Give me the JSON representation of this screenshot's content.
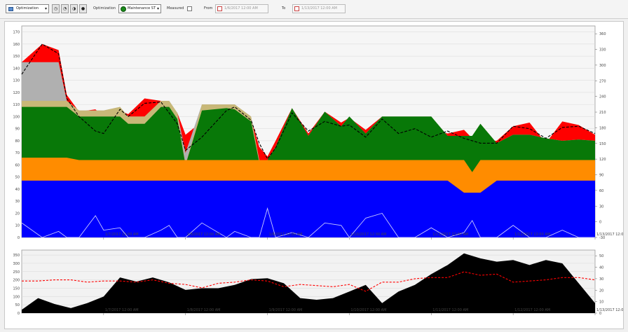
{
  "toolbar": {
    "view_dropdown": "Optimization",
    "optimization_label": "Optimization",
    "scenario_dropdown": "Maintenance ST",
    "measured_label": "Measured",
    "from_label": "From",
    "from_value": "1/6/2017 12:00 AM",
    "to_label": "To",
    "to_value": "1/13/2017 12:00 AM"
  },
  "colors": {
    "blue": "#0000ff",
    "orange": "#ff8c00",
    "green": "#087808",
    "khaki": "#c8b878",
    "gray": "#b0b0b0",
    "red": "#ff0000",
    "dashed": "#000000",
    "lightline": "#c8c8ff",
    "black_area": "#000000",
    "red_dashed": "#ff0000"
  },
  "chart_data": [
    {
      "type": "area",
      "x_tick_labels": [
        "1/7/2017 12:00 AM",
        "1/8/2017 12:00 AM",
        "1/9/2017 12:00 AM",
        "1/10/2017 12:00 AM",
        "1/11/2017 12:00 AM",
        "1/12/2017 12:00 AM",
        "1/13/2017 12:00 AM"
      ],
      "x_tick_texts": [
        "1/7/2017 12:00 AM",
        "1/8/2017 12:00 AM",
        "1/9/2017 12:00 AM",
        "1/10/2017 12:00 AM",
        "1/11/2017 12:00 AM",
        "1/12/2017 12:00 AM",
        "1/13/2017 12:00 AM"
      ],
      "xlim_days": [
        0,
        7
      ],
      "ylim_left": [
        0,
        175
      ],
      "y_ticks_left": [
        0,
        10,
        20,
        30,
        40,
        50,
        60,
        70,
        80,
        90,
        100,
        110,
        120,
        130,
        140,
        150,
        160,
        170
      ],
      "ylim_right": [
        -30,
        375
      ],
      "y_ticks_right": [
        -30,
        0,
        30,
        60,
        90,
        120,
        150,
        180,
        210,
        240,
        270,
        300,
        330,
        360
      ],
      "grid": true,
      "x": [
        0,
        0.25,
        0.45,
        0.55,
        0.7,
        0.9,
        1.0,
        1.2,
        1.3,
        1.5,
        1.7,
        1.8,
        1.9,
        2.0,
        2.2,
        2.5,
        2.6,
        2.8,
        2.9,
        3.0,
        3.1,
        3.3,
        3.5,
        3.7,
        3.9,
        4.0,
        4.2,
        4.4,
        4.6,
        4.8,
        5.0,
        5.2,
        5.4,
        5.5,
        5.6,
        5.8,
        6.0,
        6.2,
        6.4,
        6.6,
        6.8,
        7.0
      ],
      "series": [
        {
          "values": [
            47,
            47,
            47,
            47,
            47,
            47,
            47,
            47,
            47,
            47,
            47,
            47,
            47,
            47,
            47,
            47,
            47,
            47,
            47,
            47,
            47,
            47,
            47,
            47,
            47,
            47,
            47,
            47,
            47,
            47,
            47,
            47,
            37,
            37,
            37,
            47,
            47,
            47,
            47,
            47,
            47,
            47
          ]
        },
        {
          "values": [
            66,
            66,
            66,
            66,
            64,
            64,
            64,
            64,
            64,
            64,
            64,
            64,
            64,
            64,
            64,
            64,
            64,
            64,
            64,
            64,
            64,
            64,
            64,
            64,
            64,
            64,
            64,
            64,
            64,
            64,
            64,
            64,
            64,
            54,
            64,
            64,
            64,
            64,
            64,
            64,
            64,
            64
          ]
        },
        {
          "values": [
            108,
            108,
            108,
            108,
            100,
            100,
            100,
            100,
            94,
            94,
            108,
            108,
            98,
            60,
            105,
            107,
            106,
            96,
            62,
            64,
            75,
            107,
            84,
            104,
            92,
            100,
            86,
            100,
            100,
            100,
            100,
            84,
            84,
            84,
            94,
            78,
            85,
            85,
            82,
            80,
            81,
            80
          ]
        },
        {
          "values": [
            113,
            113,
            113,
            113,
            105,
            105,
            105,
            108,
            100,
            100,
            113,
            113,
            103,
            60,
            110,
            110,
            110,
            100,
            64,
            64,
            75,
            107,
            84,
            104,
            92,
            100,
            86,
            100,
            100,
            100,
            100,
            84,
            84,
            84,
            94,
            78,
            85,
            85,
            82,
            80,
            81,
            80
          ]
        },
        {
          "values": [
            145,
            145,
            145,
            113,
            105,
            105,
            105,
            108,
            100,
            100,
            113,
            113,
            103,
            70,
            110,
            110,
            110,
            100,
            64,
            64,
            75,
            107,
            84,
            104,
            92,
            100,
            86,
            100,
            100,
            100,
            100,
            84,
            84,
            84,
            94,
            78,
            85,
            85,
            82,
            80,
            81,
            80
          ]
        },
        {
          "values": [
            145,
            160,
            155,
            118,
            104,
            106,
            100,
            105,
            102,
            115,
            113,
            112,
            103,
            85,
            96,
            108,
            106,
            98,
            75,
            67,
            80,
            107,
            86,
            104,
            95,
            99,
            89,
            100,
            95,
            99,
            89,
            86,
            89,
            82,
            80,
            80,
            92,
            95,
            78,
            96,
            93,
            85
          ]
        },
        {
          "values": [
            135,
            160,
            152,
            115,
            100,
            88,
            86,
            106,
            100,
            111,
            112,
            103,
            94,
            72,
            83,
            105,
            108,
            97,
            78,
            65,
            74,
            103,
            88,
            96,
            92,
            93,
            83,
            98,
            86,
            90,
            83,
            88,
            82,
            80,
            78,
            78,
            92,
            90,
            82,
            91,
            92,
            86
          ]
        },
        {
          "values": [
            12,
            0,
            5,
            0,
            0,
            18,
            6,
            8,
            0,
            0,
            6,
            10,
            0,
            0,
            12,
            0,
            5,
            0,
            0,
            24,
            0,
            4,
            0,
            12,
            10,
            0,
            16,
            20,
            0,
            0,
            8,
            0,
            4,
            14,
            0,
            0,
            10,
            0,
            0,
            6,
            0,
            0
          ]
        }
      ]
    },
    {
      "type": "area",
      "x_tick_labels": [
        "1/7/2017 12:00 AM",
        "1/8/2017 12:00 AM",
        "1/9/2017 12:00 AM",
        "1/10/2017 12:00 AM",
        "1/11/2017 12:00 AM",
        "1/12/2017 12:00 AM",
        "1/13/2017 12:00 AM"
      ],
      "x_tick_texts": [
        "1/7/2017 12:00 AM",
        "1/8/2017 12:00 AM",
        "1/9/2017 12:00 AM",
        "1/10/2017 12:00 AM",
        "1/11/2017 12:00 AM",
        "1/12/2017 12:00 AM",
        "1/13/2017 12:00 AM"
      ],
      "y_ticks_left": [
        0,
        50,
        100,
        150,
        200,
        250,
        300,
        350
      ],
      "ylim_left": [
        0,
        380
      ],
      "y_ticks_right": [
        0,
        10,
        20,
        30,
        40,
        50
      ],
      "ylim_right": [
        0,
        55
      ],
      "x": [
        0,
        0.2,
        0.4,
        0.6,
        0.8,
        1.0,
        1.2,
        1.4,
        1.6,
        1.8,
        2.0,
        2.2,
        2.4,
        2.6,
        2.8,
        3.0,
        3.2,
        3.4,
        3.6,
        3.8,
        4.0,
        4.2,
        4.4,
        4.6,
        4.8,
        5.0,
        5.2,
        5.4,
        5.6,
        5.8,
        6.0,
        6.2,
        6.4,
        6.6,
        6.8,
        7.0
      ],
      "series": [
        {
          "values": [
            20,
            90,
            55,
            30,
            60,
            100,
            215,
            190,
            215,
            185,
            140,
            150,
            150,
            170,
            205,
            210,
            180,
            90,
            80,
            90,
            130,
            170,
            60,
            130,
            170,
            235,
            290,
            360,
            330,
            310,
            320,
            290,
            320,
            300,
            180,
            60
          ]
        },
        {
          "values": [
            28,
            28,
            29,
            29,
            27,
            28,
            28,
            27,
            29,
            26,
            25,
            22,
            26,
            27,
            29,
            28,
            23,
            25,
            24,
            23,
            25,
            19,
            27,
            27,
            30,
            31,
            31,
            36,
            33,
            34,
            27,
            28,
            29,
            31,
            31,
            29
          ]
        }
      ]
    }
  ]
}
